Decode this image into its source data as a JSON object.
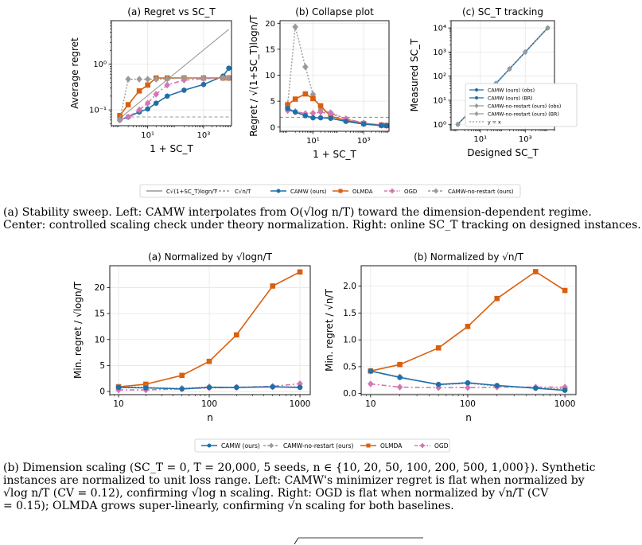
{
  "colors": {
    "camw": "#1f6fa8",
    "olmda": "#d9600f",
    "ogd": "#d675b0",
    "norestart": "#9a9a9a",
    "ref1": "#999999",
    "ref2": "#999999",
    "grid": "#e6e6e6"
  },
  "chart_data": [
    {
      "id": "regret",
      "type": "line",
      "title": "(a) Regret vs SC_T",
      "xlabel": "1 + SC_T",
      "ylabel": "Average regret",
      "xscale": "log",
      "yscale": "log",
      "xlim": [
        0.5,
        10000
      ],
      "ylim": [
        0.045,
        9
      ],
      "xticks": [
        {
          "v": 10,
          "label": "10¹"
        },
        {
          "v": 1000,
          "label": "10³"
        }
      ],
      "yticks": [
        {
          "v": 0.1,
          "label": "10⁻¹"
        },
        {
          "v": 1,
          "label": "10⁰"
        }
      ],
      "series": [
        {
          "key": "ref1",
          "x": [
            1,
            8000
          ],
          "y": [
            0.065,
            5.8
          ]
        },
        {
          "key": "ref2",
          "x": [
            1,
            8000
          ],
          "y": [
            0.07,
            0.07
          ]
        },
        {
          "key": "camw",
          "x": [
            1,
            2,
            5,
            10,
            20,
            50,
            200,
            1000,
            5000,
            8000
          ],
          "y": [
            0.06,
            0.07,
            0.09,
            0.105,
            0.14,
            0.2,
            0.27,
            0.36,
            0.55,
            0.82
          ]
        },
        {
          "key": "olmda",
          "x": [
            1,
            2,
            5,
            10,
            20,
            50,
            200,
            1000,
            5000,
            8000
          ],
          "y": [
            0.075,
            0.13,
            0.26,
            0.35,
            0.5,
            0.5,
            0.5,
            0.5,
            0.5,
            0.5
          ]
        },
        {
          "key": "ogd",
          "x": [
            1,
            2,
            5,
            10,
            20,
            50,
            200,
            1000,
            5000,
            8000
          ],
          "y": [
            0.06,
            0.07,
            0.1,
            0.14,
            0.22,
            0.35,
            0.45,
            0.48,
            0.5,
            0.5
          ]
        },
        {
          "key": "norestart",
          "x": [
            1,
            2,
            5,
            10,
            20,
            50,
            200,
            1000,
            5000,
            8000
          ],
          "y": [
            0.06,
            0.47,
            0.47,
            0.47,
            0.47,
            0.48,
            0.5,
            0.5,
            0.5,
            0.5
          ]
        }
      ]
    },
    {
      "id": "collapse",
      "type": "line",
      "title": "(b) Collapse plot",
      "xlabel": "1 + SC_T",
      "ylabel": "Regret / √(1+SC_T)logn/T",
      "xscale": "log",
      "yscale": "linear",
      "xlim": [
        0.5,
        10000
      ],
      "ylim": [
        -0.8,
        20.5
      ],
      "xticks": [
        {
          "v": 10,
          "label": "10¹"
        },
        {
          "v": 1000,
          "label": "10³"
        }
      ],
      "yticks": [
        {
          "v": 0,
          "label": "0"
        },
        {
          "v": 5,
          "label": "5"
        },
        {
          "v": 10,
          "label": "10"
        },
        {
          "v": 15,
          "label": "15"
        },
        {
          "v": 20,
          "label": "20"
        }
      ],
      "series": [
        {
          "key": "ref2",
          "x": [
            0.5,
            10000
          ],
          "y": [
            1.9,
            1.9
          ]
        },
        {
          "key": "norestart",
          "x": [
            1,
            2,
            5,
            10,
            20,
            50,
            200,
            1000,
            5000,
            8000
          ],
          "y": [
            4.4,
            19.3,
            11.6,
            6.3,
            3.3,
            2.8,
            1.6,
            0.8,
            0.4,
            0.3
          ]
        },
        {
          "key": "olmda",
          "x": [
            1,
            2,
            5,
            10,
            20,
            50,
            200,
            1000,
            5000,
            8000
          ],
          "y": [
            4.3,
            5.4,
            6.4,
            5.5,
            4.1,
            2.1,
            1.3,
            0.7,
            0.4,
            0.3
          ]
        },
        {
          "key": "ogd",
          "x": [
            1,
            2,
            5,
            10,
            20,
            50,
            200,
            1000,
            5000,
            8000
          ],
          "y": [
            3.2,
            3.0,
            2.6,
            2.7,
            2.9,
            2.6,
            1.6,
            0.8,
            0.4,
            0.3
          ]
        },
        {
          "key": "camw",
          "x": [
            1,
            2,
            5,
            10,
            20,
            50,
            200,
            1000,
            5000,
            8000
          ],
          "y": [
            3.6,
            2.9,
            2.2,
            1.8,
            1.8,
            1.7,
            1.1,
            0.6,
            0.3,
            0.3
          ]
        }
      ]
    },
    {
      "id": "tracking",
      "type": "line",
      "title": "(c) SC_T tracking",
      "xlabel": "Designed SC_T",
      "ylabel": "Measured SC_T",
      "xscale": "log",
      "yscale": "log",
      "xlim": [
        0.5,
        20000
      ],
      "ylim": [
        0.6,
        20000
      ],
      "xticks": [
        {
          "v": 10,
          "label": "10¹"
        },
        {
          "v": 1000,
          "label": "10³"
        }
      ],
      "yticks": [
        {
          "v": 1,
          "label": "10⁰"
        },
        {
          "v": 10,
          "label": "10¹"
        },
        {
          "v": 100,
          "label": "10²"
        },
        {
          "v": 1000,
          "label": "10³"
        },
        {
          "v": 10000,
          "label": "10⁴"
        }
      ],
      "legend_entries": [
        {
          "key": "camw",
          "label": "CAMW (ours) (obs)",
          "marker": "circle",
          "dash": false
        },
        {
          "key": "camw",
          "label": "CAMW (ours) (BR)",
          "marker": "circle",
          "dash": false
        },
        {
          "key": "norestart",
          "label": "CAMW-no-restart (ours) (obs)",
          "marker": "diamond",
          "dash": false
        },
        {
          "key": "norestart",
          "label": "CAMW-no-restart (ours) (BR)",
          "marker": "diamond",
          "dash": false
        },
        {
          "key": "ref1",
          "label": "y = x",
          "marker": "none",
          "dash": true
        }
      ],
      "series": [
        {
          "key": "ref1",
          "x": [
            1,
            10000
          ],
          "y": [
            1,
            10000
          ]
        },
        {
          "key": "camw",
          "x": [
            1,
            10,
            50,
            200,
            1000,
            10000
          ],
          "y": [
            1,
            10,
            50,
            200,
            1000,
            10000
          ]
        },
        {
          "key": "norestart",
          "x": [
            1,
            10,
            50,
            200,
            1000,
            10000
          ],
          "y": [
            1,
            10,
            50,
            200,
            1000,
            10000
          ]
        }
      ]
    },
    {
      "id": "norm_log",
      "type": "line",
      "title": "(a) Normalized by √logn/T",
      "xlabel": "n",
      "ylabel": "Min. regret / √logn/T",
      "xscale": "log",
      "yscale": "linear",
      "xlim": [
        8,
        1300
      ],
      "ylim": [
        -0.6,
        24.2
      ],
      "xticks": [
        {
          "v": 10,
          "label": "10"
        },
        {
          "v": 100,
          "label": "100"
        },
        {
          "v": 1000,
          "label": "1000"
        }
      ],
      "yticks": [
        {
          "v": 0,
          "label": "0"
        },
        {
          "v": 5,
          "label": "5"
        },
        {
          "v": 10,
          "label": "10"
        },
        {
          "v": 15,
          "label": "15"
        },
        {
          "v": 20,
          "label": "20"
        }
      ],
      "series": [
        {
          "key": "olmda",
          "x": [
            10,
            20,
            50,
            100,
            200,
            500,
            1000
          ],
          "y": [
            0.9,
            1.4,
            3.1,
            5.8,
            10.9,
            20.3,
            23.0
          ]
        },
        {
          "key": "norestart",
          "x": [
            10,
            20,
            50,
            100,
            200,
            500,
            1000
          ],
          "y": [
            0.9,
            0.8,
            0.6,
            0.9,
            0.8,
            0.9,
            0.9
          ]
        },
        {
          "key": "ogd",
          "x": [
            10,
            20,
            50,
            100,
            200,
            500,
            1000
          ],
          "y": [
            0.3,
            0.3,
            0.5,
            0.7,
            0.8,
            1.0,
            1.5
          ]
        },
        {
          "key": "camw",
          "x": [
            10,
            20,
            50,
            100,
            200,
            500,
            1000
          ],
          "y": [
            0.8,
            0.7,
            0.5,
            0.8,
            0.8,
            0.9,
            0.8
          ]
        }
      ]
    },
    {
      "id": "norm_sqrt",
      "type": "line",
      "title": "(b) Normalized by √n/T",
      "xlabel": "n",
      "ylabel": "Min. regret / √n/T",
      "xscale": "log",
      "yscale": "linear",
      "xlim": [
        8,
        1300
      ],
      "ylim": [
        -0.02,
        2.38
      ],
      "xticks": [
        {
          "v": 10,
          "label": "10"
        },
        {
          "v": 100,
          "label": "100"
        },
        {
          "v": 1000,
          "label": "1000"
        }
      ],
      "yticks": [
        {
          "v": 0,
          "label": "0.0"
        },
        {
          "v": 0.5,
          "label": "0.5"
        },
        {
          "v": 1,
          "label": "1.0"
        },
        {
          "v": 1.5,
          "label": "1.5"
        },
        {
          "v": 2,
          "label": "2.0"
        }
      ],
      "series": [
        {
          "key": "olmda",
          "x": [
            10,
            20,
            50,
            100,
            200,
            500,
            1000
          ],
          "y": [
            0.42,
            0.54,
            0.85,
            1.25,
            1.77,
            2.27,
            1.92
          ]
        },
        {
          "key": "norestart",
          "x": [
            10,
            20,
            50,
            100,
            200,
            500,
            1000
          ],
          "y": [
            0.42,
            0.31,
            0.16,
            0.19,
            0.14,
            0.11,
            0.09
          ]
        },
        {
          "key": "ogd",
          "x": [
            10,
            20,
            50,
            100,
            200,
            500,
            1000
          ],
          "y": [
            0.18,
            0.12,
            0.11,
            0.11,
            0.12,
            0.12,
            0.12
          ]
        },
        {
          "key": "camw",
          "x": [
            10,
            20,
            50,
            100,
            200,
            500,
            1000
          ],
          "y": [
            0.42,
            0.3,
            0.17,
            0.2,
            0.15,
            0.1,
            0.06
          ]
        }
      ]
    }
  ],
  "legend_top": [
    {
      "key": "ref1",
      "label": "C√(1+SC_T)logn/T",
      "marker": "none",
      "dash": false
    },
    {
      "key": "ref2",
      "label": "C√n/T",
      "marker": "none",
      "dash": true
    },
    {
      "key": "camw",
      "label": "CAMW (ours)",
      "marker": "circle",
      "dash": false
    },
    {
      "key": "olmda",
      "label": "OLMDA",
      "marker": "square",
      "dash": false
    },
    {
      "key": "ogd",
      "label": "OGD",
      "marker": "diamond",
      "dash": true
    },
    {
      "key": "norestart",
      "label": "CAMW-no-restart (ours)",
      "marker": "diamond",
      "dash": true
    }
  ],
  "legend_bottom": [
    {
      "key": "camw",
      "label": "CAMW (ours)",
      "marker": "circle",
      "dash": false
    },
    {
      "key": "norestart",
      "label": "CAMW-no-restart (ours)",
      "marker": "diamond",
      "dash": true
    },
    {
      "key": "olmda",
      "label": "OLMDA",
      "marker": "square",
      "dash": false
    },
    {
      "key": "ogd",
      "label": "OGD",
      "marker": "diamond",
      "dash": true
    }
  ],
  "captions": {
    "a_1": "(a) Stability sweep. Left: CAMW interpolates from O(√log n/T) toward the dimension-dependent regime.",
    "a_2": "Center: controlled scaling check under theory normalization. Right: online SC_T tracking on designed instances.",
    "b_1": "(b) Dimension scaling (SC_T = 0, T = 20,000, 5 seeds, n ∈ {10, 20, 50, 100, 200, 500, 1,000}). Synthetic",
    "b_2": "instances are normalized to unit loss range. Left: CAMW's minimizer regret is flat when normalized by",
    "b_3": "√log n/T (CV = 0.12), confirming √log n scaling. Right: OGD is flat when normalized by √n/T (CV",
    "b_4": "= 0.15); OLMDA grows super-linearly, confirming √n scaling for both baselines."
  }
}
